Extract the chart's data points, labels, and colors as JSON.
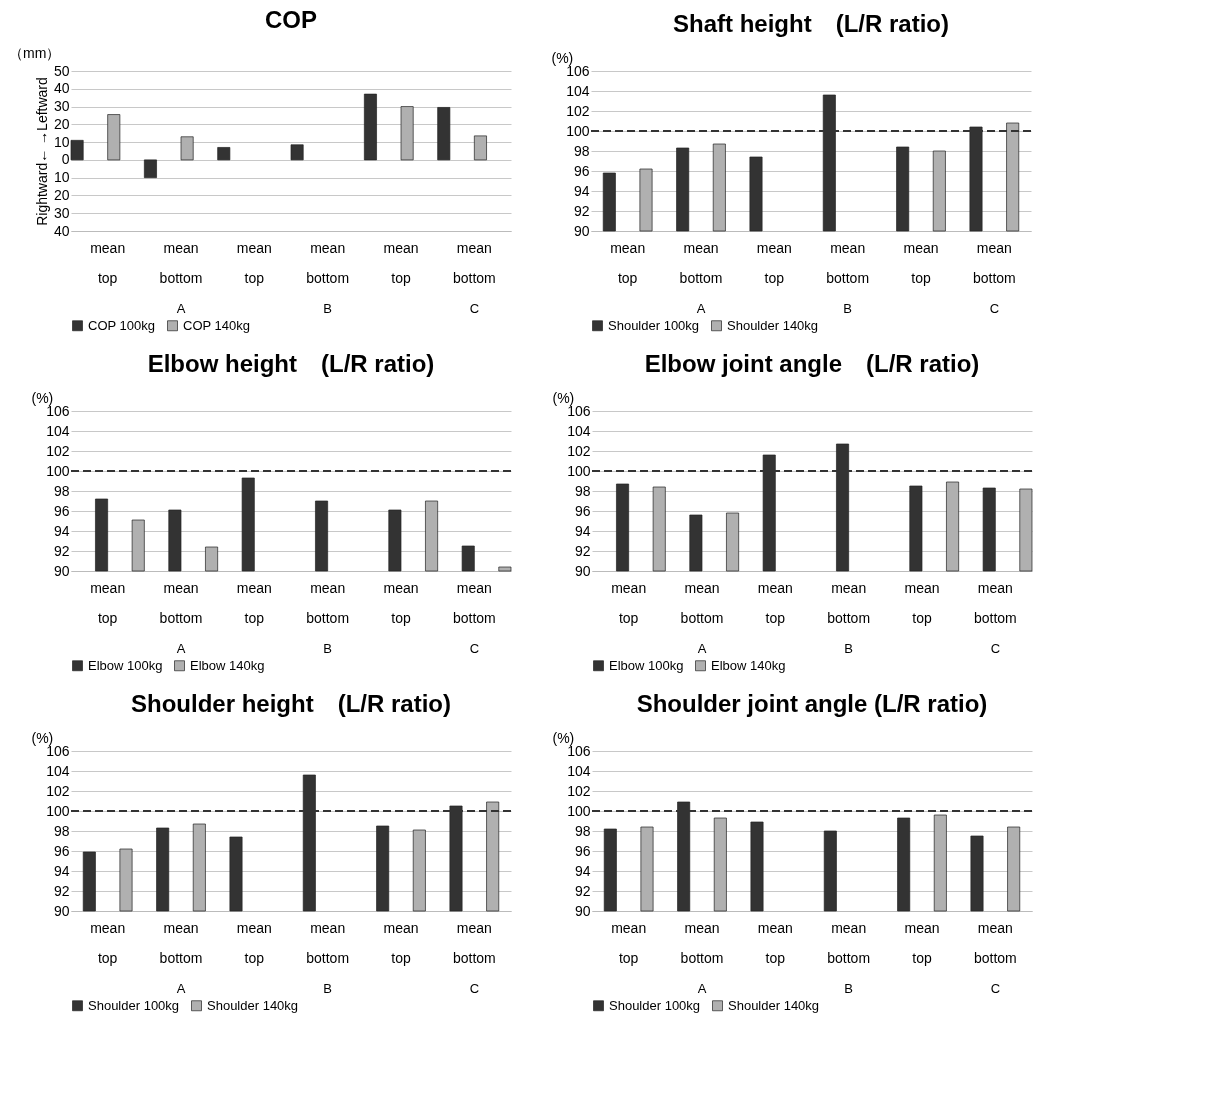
{
  "chart_data": [
    {
      "type": "bar",
      "title": "COP",
      "ylabel": "Rightward←      →Leftward",
      "categories": [
        "mean top",
        "mean bottom",
        "mean top",
        "mean bottom",
        "mean top",
        "mean bottom"
      ],
      "series": [
        {
          "name": "COP 100kg",
          "color": "#333333",
          "values": [
            11,
            -10,
            7,
            8.5,
            37,
            29.5
          ]
        },
        {
          "name": "COP 140kg",
          "color": "#b0b0b0",
          "values": [
            25.5,
            13,
            null,
            null,
            30,
            13.5
          ]
        }
      ],
      "ylim": [
        -40,
        50
      ],
      "yticks": [
        {
          "value": -40,
          "label": "40"
        },
        {
          "value": -30,
          "label": "30"
        },
        {
          "value": -20,
          "label": "20"
        },
        {
          "value": -10,
          "label": "10"
        },
        0,
        10,
        20,
        30,
        40,
        50
      ],
      "annotations": [
        "（mm）",
        "A",
        "B",
        "C"
      ],
      "grid": "y",
      "legend": "bottom"
    },
    {
      "type": "bar",
      "title": "Shaft height　(L/R ratio)",
      "ylabel": "(%)",
      "categories": [
        "mean top",
        "mean bottom",
        "mean top",
        "mean bottom",
        "mean top",
        "mean bottom"
      ],
      "series": [
        {
          "name": "Shoulder 100kg",
          "color": "#333333",
          "values": [
            95.8,
            98.3,
            97.4,
            103.6,
            98.4,
            100.4
          ]
        },
        {
          "name": "Shoulder 140kg",
          "color": "#b0b0b0",
          "values": [
            96.2,
            98.7,
            null,
            null,
            98.0,
            100.8
          ]
        }
      ],
      "ylim": [
        90,
        106
      ],
      "yticks": [
        90,
        92,
        94,
        96,
        98,
        100,
        102,
        104,
        106
      ],
      "ref_lines": [
        {
          "axis": "y",
          "value": 100,
          "color": "#333333",
          "line_style": "dashed"
        }
      ],
      "annotations": [
        "A",
        "B",
        "C"
      ],
      "grid": "y",
      "legend": "bottom"
    },
    {
      "type": "bar",
      "title": "Elbow height　(L/R ratio)",
      "ylabel": "(%)",
      "categories": [
        "mean top",
        "mean bottom",
        "mean top",
        "mean bottom",
        "mean top",
        "mean bottom"
      ],
      "series": [
        {
          "name": "Elbow 100kg",
          "color": "#333333",
          "values": [
            97.2,
            96.1,
            99.3,
            97.0,
            96.1,
            92.5
          ]
        },
        {
          "name": "Elbow 140kg",
          "color": "#b0b0b0",
          "values": [
            95.1,
            92.4,
            null,
            null,
            97.0,
            90.4
          ]
        }
      ],
      "ylim": [
        90,
        106
      ],
      "yticks": [
        90,
        92,
        94,
        96,
        98,
        100,
        102,
        104,
        106
      ],
      "ref_lines": [
        {
          "axis": "y",
          "value": 100,
          "color": "#333333",
          "line_style": "dashed"
        }
      ],
      "annotations": [
        "A",
        "B",
        "C"
      ],
      "grid": "y",
      "legend": "bottom"
    },
    {
      "type": "bar",
      "title": "Elbow joint angle　(L/R ratio)",
      "ylabel": "(%)",
      "categories": [
        "mean top",
        "mean bottom",
        "mean top",
        "mean bottom",
        "mean top",
        "mean bottom"
      ],
      "series": [
        {
          "name": "Elbow 100kg",
          "color": "#333333",
          "values": [
            98.7,
            95.6,
            101.6,
            102.7,
            98.5,
            98.3
          ]
        },
        {
          "name": "Elbow 140kg",
          "color": "#b0b0b0",
          "values": [
            98.4,
            95.8,
            null,
            null,
            98.9,
            98.2
          ]
        }
      ],
      "ylim": [
        90,
        106
      ],
      "yticks": [
        90,
        92,
        94,
        96,
        98,
        100,
        102,
        104,
        106
      ],
      "ref_lines": [
        {
          "axis": "y",
          "value": 100,
          "color": "#333333",
          "line_style": "dashed"
        }
      ],
      "annotations": [
        "A",
        "B",
        "C"
      ],
      "grid": "y",
      "legend": "bottom"
    },
    {
      "type": "bar",
      "title": "Shoulder height　(L/R ratio)",
      "ylabel": "(%)",
      "categories": [
        "mean top",
        "mean bottom",
        "mean top",
        "mean bottom",
        "mean top",
        "mean bottom"
      ],
      "series": [
        {
          "name": "Shoulder 100kg",
          "color": "#333333",
          "values": [
            95.9,
            98.3,
            97.4,
            103.6,
            98.5,
            100.5
          ]
        },
        {
          "name": "Shoulder 140kg",
          "color": "#b0b0b0",
          "values": [
            96.2,
            98.7,
            null,
            null,
            98.1,
            100.9
          ]
        }
      ],
      "ylim": [
        90,
        106
      ],
      "yticks": [
        90,
        92,
        94,
        96,
        98,
        100,
        102,
        104,
        106
      ],
      "ref_lines": [
        {
          "axis": "y",
          "value": 100,
          "color": "#333333",
          "line_style": "dashed"
        }
      ],
      "annotations": [
        "A",
        "B",
        "C"
      ],
      "grid": "y",
      "legend": "bottom"
    },
    {
      "type": "bar",
      "title": "Shoulder joint angle (L/R ratio)",
      "ylabel": "(%)",
      "categories": [
        "mean top",
        "mean bottom",
        "mean top",
        "mean bottom",
        "mean top",
        "mean bottom"
      ],
      "series": [
        {
          "name": "Shoulder 100kg",
          "color": "#333333",
          "values": [
            98.2,
            100.9,
            98.9,
            98.0,
            99.3,
            97.5
          ]
        },
        {
          "name": "Shoulder 140kg",
          "color": "#b0b0b0",
          "values": [
            98.4,
            99.3,
            null,
            null,
            99.6,
            98.4
          ]
        }
      ],
      "ylim": [
        90,
        106
      ],
      "yticks": [
        90,
        92,
        94,
        96,
        98,
        100,
        102,
        104,
        106
      ],
      "ref_lines": [
        {
          "axis": "y",
          "value": 100,
          "color": "#333333",
          "line_style": "dashed"
        }
      ],
      "annotations": [
        "A",
        "B",
        "C"
      ],
      "grid": "y",
      "legend": "bottom"
    }
  ]
}
